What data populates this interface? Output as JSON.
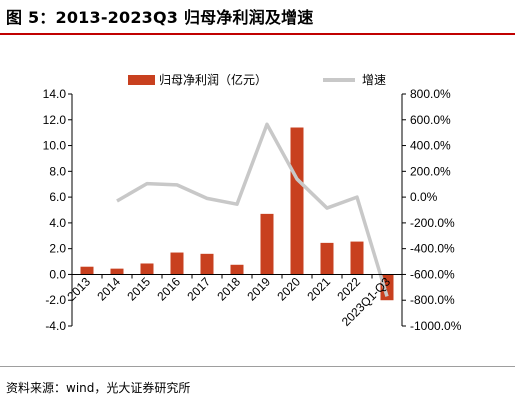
{
  "title": "图 5：2013-2023Q3 归母净利润及增速",
  "source": "资料来源：wind，光大证券研究所",
  "colors": {
    "bar": "#c8401f",
    "line": "#c8c8c8",
    "title_rule": "#c00000",
    "axis": "#000000"
  },
  "chart_data": {
    "type": "bar+line",
    "categories": [
      "2013",
      "2014",
      "2015",
      "2016",
      "2017",
      "2018",
      "2019",
      "2020",
      "2021",
      "2022",
      "2023Q1-Q3"
    ],
    "series": [
      {
        "name": "归母净利润（亿元）",
        "type": "bar",
        "axis": "left",
        "values": [
          0.6,
          0.45,
          0.85,
          1.7,
          1.6,
          0.75,
          4.7,
          11.4,
          2.45,
          2.55,
          -2.0
        ]
      },
      {
        "name": "增速",
        "type": "line",
        "axis": "right",
        "unit": "%",
        "values": [
          null,
          -30,
          105,
          95,
          -10,
          -55,
          565,
          140,
          -85,
          0,
          -770
        ]
      }
    ],
    "left_axis": {
      "min": -4.0,
      "max": 14.0,
      "step": 2.0,
      "tick_labels": [
        "-4.0",
        "-2.0",
        "0.0",
        "2.0",
        "4.0",
        "6.0",
        "8.0",
        "10.0",
        "12.0",
        "14.0"
      ]
    },
    "right_axis": {
      "min": -1000,
      "max": 800,
      "step": 200,
      "tick_labels": [
        "-1000.0%",
        "-800.0%",
        "-600.0%",
        "-400.0%",
        "-200.0%",
        "0.0%",
        "200.0%",
        "400.0%",
        "600.0%",
        "800.0%"
      ]
    },
    "legend_position": "top-center",
    "grid": false
  }
}
